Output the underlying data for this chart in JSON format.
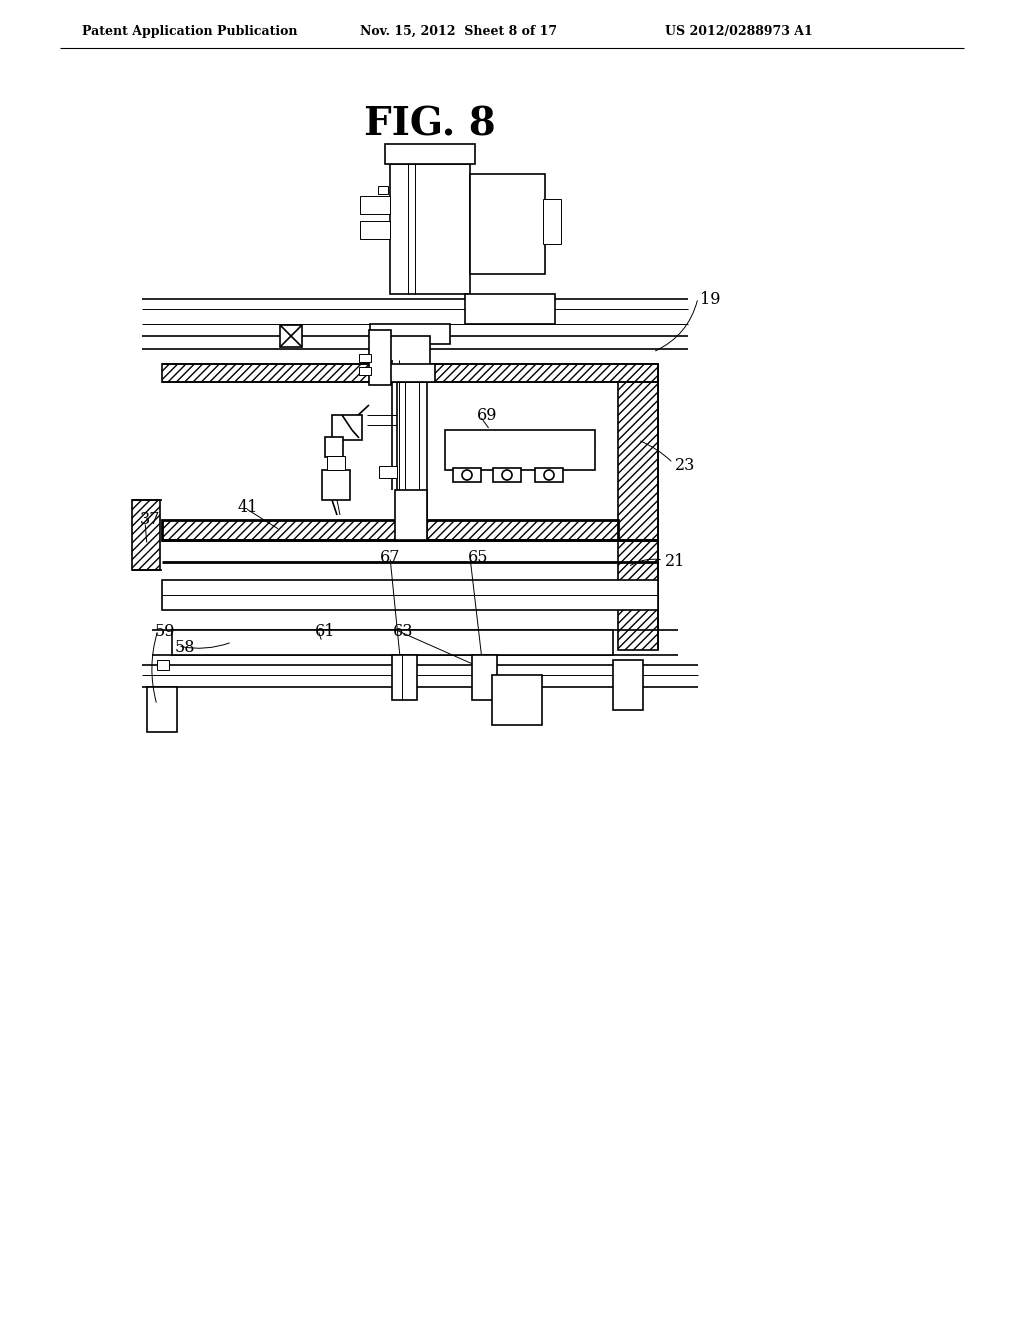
{
  "background_color": "#ffffff",
  "title": "FIG. 8",
  "header_left": "Patent Application Publication",
  "header_mid": "Nov. 15, 2012  Sheet 8 of 17",
  "header_right": "US 2012/0288973 A1",
  "fig_width": 1024,
  "fig_height": 1320
}
